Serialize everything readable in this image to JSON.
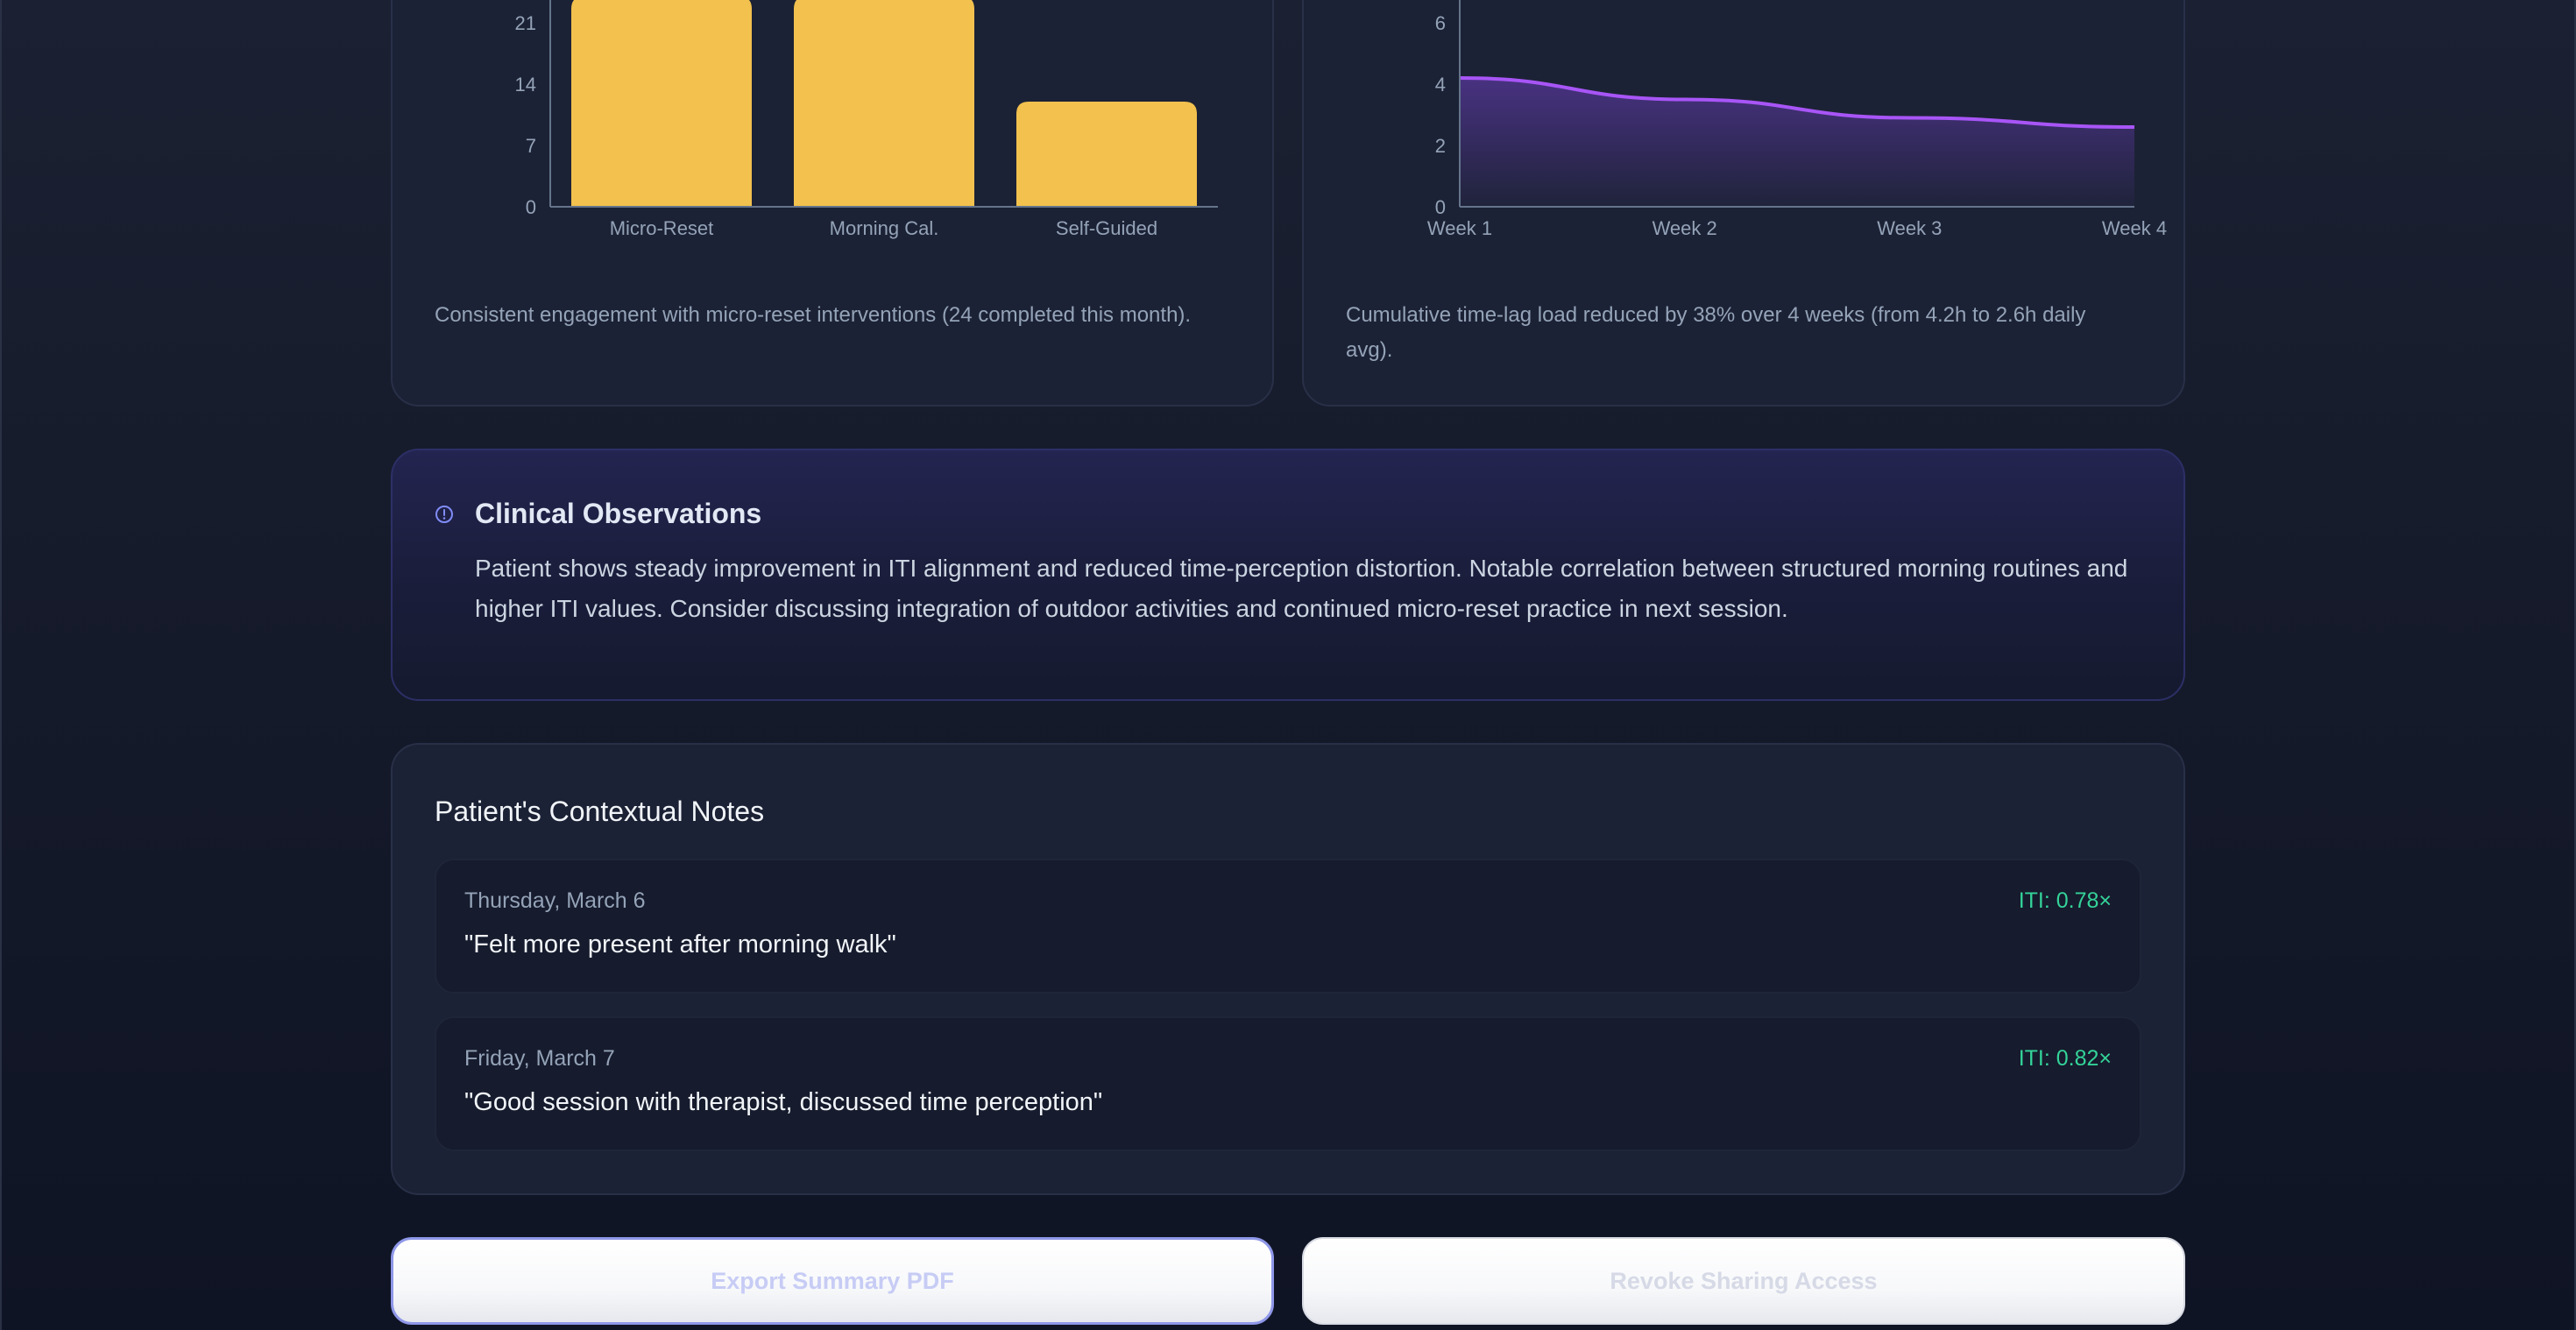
{
  "bar_card": {
    "caption": "Consistent engagement with micro-reset interventions (24 completed this month)."
  },
  "area_card": {
    "caption": "Cumulative time-lag load reduced by 38% over 4 weeks (from 4.2h to 2.6h daily avg)."
  },
  "chart_data": [
    {
      "type": "bar",
      "title": "",
      "xlabel": "",
      "ylabel": "",
      "categories": [
        "Micro-Reset",
        "Morning Cal.",
        "Self-Guided"
      ],
      "values": [
        24,
        24,
        12
      ],
      "yticks": [
        0,
        7,
        14,
        21
      ],
      "ylim": [
        0,
        28
      ],
      "color": "#f2c14e",
      "grid": false,
      "note": "top of chart clipped; tallest bars extend above visible area"
    },
    {
      "type": "area",
      "title": "",
      "xlabel": "",
      "ylabel": "",
      "categories": [
        "Week 1",
        "Week 2",
        "Week 3",
        "Week 4"
      ],
      "values": [
        4.2,
        3.5,
        2.9,
        2.6
      ],
      "yticks": [
        0,
        2,
        4,
        6
      ],
      "ylim": [
        0,
        8
      ],
      "color": "#a855f7",
      "grid": false
    }
  ],
  "observations": {
    "icon": "info-circle-icon",
    "title": "Clinical Observations",
    "text": "Patient shows steady improvement in ITI alignment and reduced time-perception distortion. Notable correlation between structured morning routines and higher ITI values. Consider discussing integration of outdoor activities and continued micro-reset practice in next session."
  },
  "notes": {
    "title": "Patient's Contextual Notes",
    "items": [
      {
        "date": "Thursday, March 6",
        "iti": "ITI: 0.78×",
        "text": "\"Felt more present after morning walk\""
      },
      {
        "date": "Friday, March 7",
        "iti": "ITI: 0.82×",
        "text": "\"Good session with therapist, discussed time perception\""
      }
    ]
  },
  "actions": {
    "export_label": "Export Summary PDF",
    "revoke_label": "Revoke Sharing Access"
  },
  "colors": {
    "accent_bar": "#f2c14e",
    "accent_line": "#a855f7",
    "iti_green": "#34d399",
    "background": "#151a2a"
  }
}
